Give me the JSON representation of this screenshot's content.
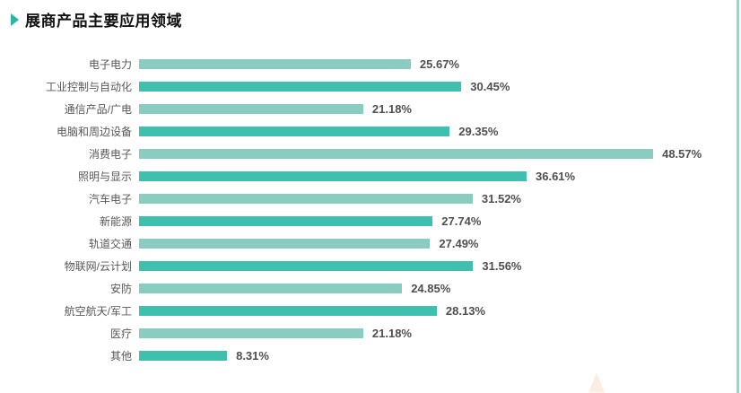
{
  "header": {
    "title": "展商产品主要应用领域"
  },
  "chart_data": {
    "type": "bar",
    "orientation": "horizontal",
    "title": "展商产品主要应用领域",
    "categories": [
      "电子电力",
      "工业控制与自动化",
      "通信产品/广电",
      "电脑和周边设备",
      "消费电子",
      "照明与显示",
      "汽车电子",
      "新能源",
      "轨道交通",
      "物联网/云计划",
      "安防",
      "航空航天/军工",
      "医疗",
      "其他"
    ],
    "values": [
      25.67,
      30.45,
      21.18,
      29.35,
      48.57,
      36.61,
      31.52,
      27.74,
      27.49,
      31.56,
      24.85,
      28.13,
      21.18,
      8.31
    ],
    "value_labels": [
      "25.67%",
      "30.45%",
      "21.18%",
      "29.35%",
      "48.57%",
      "36.61%",
      "31.52%",
      "27.74%",
      "27.49%",
      "31.56%",
      "24.85%",
      "28.13%",
      "21.18%",
      "8.31%"
    ],
    "xlim": [
      0,
      50
    ],
    "value_suffix": "%",
    "grid": false,
    "legend": null,
    "bar_color_light": "#8accc0",
    "bar_color_dark": "#3fbfae",
    "color_pattern": "alternating, even rows light / odd rows dark",
    "accent_color": "#2cb5a5"
  }
}
